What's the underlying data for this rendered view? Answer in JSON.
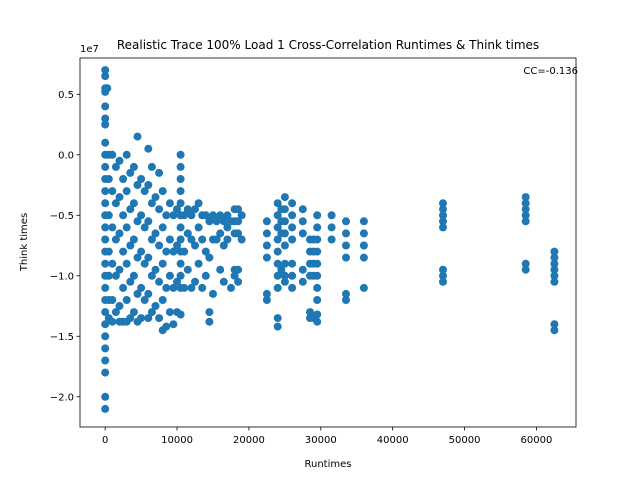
{
  "chart_data": {
    "type": "scatter",
    "title": "Realistic Trace 100% Load 1 Cross-Correlation Runtimes & Think times",
    "xlabel": "Runtimes",
    "ylabel": "Think times",
    "y_offset_label": "1e7",
    "annotation": "CC=-0.136",
    "xlim": [
      -3500,
      65500
    ],
    "ylim": [
      -2.25,
      0.8
    ],
    "x_ticks": [
      0,
      10000,
      20000,
      30000,
      40000,
      50000,
      60000
    ],
    "x_tick_labels": [
      "0",
      "10000",
      "20000",
      "30000",
      "40000",
      "50000",
      "60000"
    ],
    "y_ticks": [
      0.5,
      0.0,
      -0.5,
      -1.0,
      -1.5,
      -2.0
    ],
    "y_tick_labels": [
      "0.5",
      "0.0",
      "−0.5",
      "−1.0",
      "−1.5",
      "−2.0"
    ],
    "marker_color": "#1f77b4",
    "grid": false,
    "points": [
      [
        0,
        0.7
      ],
      [
        0,
        0.65
      ],
      [
        0,
        0.55
      ],
      [
        0,
        0.52
      ],
      [
        0,
        0.4
      ],
      [
        0,
        0.3
      ],
      [
        0,
        0.25
      ],
      [
        0,
        0.1
      ],
      [
        0,
        0.0
      ],
      [
        0,
        -0.1
      ],
      [
        0,
        -0.2
      ],
      [
        0,
        -0.3
      ],
      [
        0,
        -0.4
      ],
      [
        0,
        -0.5
      ],
      [
        0,
        -0.6
      ],
      [
        0,
        -0.7
      ],
      [
        0,
        -0.8
      ],
      [
        0,
        -0.9
      ],
      [
        0,
        -1.0
      ],
      [
        0,
        -1.1
      ],
      [
        0,
        -1.2
      ],
      [
        0,
        -1.3
      ],
      [
        0,
        -1.4
      ],
      [
        0,
        -1.5
      ],
      [
        0,
        -1.6
      ],
      [
        0,
        -1.7
      ],
      [
        0,
        -1.8
      ],
      [
        0,
        -2.0
      ],
      [
        0,
        -2.1
      ],
      [
        300,
        0.55
      ],
      [
        500,
        0.0
      ],
      [
        500,
        -0.2
      ],
      [
        500,
        -0.5
      ],
      [
        500,
        -0.8
      ],
      [
        500,
        -1.0
      ],
      [
        500,
        -1.2
      ],
      [
        500,
        -1.35
      ],
      [
        1000,
        0.0
      ],
      [
        1000,
        -0.3
      ],
      [
        1000,
        -0.6
      ],
      [
        1000,
        -0.9
      ],
      [
        1000,
        -1.2
      ],
      [
        1000,
        -1.38
      ],
      [
        1500,
        -0.1
      ],
      [
        1500,
        -0.4
      ],
      [
        1500,
        -0.7
      ],
      [
        1500,
        -1.0
      ],
      [
        1500,
        -1.3
      ],
      [
        2000,
        -0.05
      ],
      [
        2000,
        -0.35
      ],
      [
        2000,
        -0.65
      ],
      [
        2000,
        -0.95
      ],
      [
        2000,
        -1.25
      ],
      [
        2000,
        -1.38
      ],
      [
        2500,
        -0.2
      ],
      [
        2500,
        -0.5
      ],
      [
        2500,
        -0.8
      ],
      [
        2500,
        -1.1
      ],
      [
        2500,
        -1.38
      ],
      [
        3000,
        0.0
      ],
      [
        3000,
        -0.3
      ],
      [
        3000,
        -0.6
      ],
      [
        3000,
        -0.9
      ],
      [
        3000,
        -1.2
      ],
      [
        3000,
        -1.38
      ],
      [
        3500,
        -0.15
      ],
      [
        3500,
        -0.45
      ],
      [
        3500,
        -0.75
      ],
      [
        3500,
        -1.05
      ],
      [
        3500,
        -1.35
      ],
      [
        4000,
        -0.1
      ],
      [
        4000,
        -0.4
      ],
      [
        4000,
        -0.7
      ],
      [
        4000,
        -1.0
      ],
      [
        4000,
        -1.3
      ],
      [
        4500,
        0.15
      ],
      [
        4500,
        -0.25
      ],
      [
        4500,
        -0.55
      ],
      [
        4500,
        -0.85
      ],
      [
        4500,
        -1.15
      ],
      [
        4500,
        -1.38
      ],
      [
        5000,
        -0.2
      ],
      [
        5000,
        -0.5
      ],
      [
        5000,
        -0.8
      ],
      [
        5000,
        -1.1
      ],
      [
        5000,
        -1.35
      ],
      [
        5500,
        -0.3
      ],
      [
        5500,
        -0.6
      ],
      [
        5500,
        -0.9
      ],
      [
        5500,
        -1.2
      ],
      [
        6000,
        0.05
      ],
      [
        6000,
        -0.25
      ],
      [
        6000,
        -0.55
      ],
      [
        6000,
        -0.85
      ],
      [
        6000,
        -1.15
      ],
      [
        6000,
        -1.35
      ],
      [
        6500,
        -0.1
      ],
      [
        6500,
        -0.4
      ],
      [
        6500,
        -0.7
      ],
      [
        6500,
        -1.0
      ],
      [
        6500,
        -1.3
      ],
      [
        7000,
        -0.35
      ],
      [
        7000,
        -0.65
      ],
      [
        7000,
        -0.95
      ],
      [
        7000,
        -1.25
      ],
      [
        7500,
        -0.15
      ],
      [
        7500,
        -0.45
      ],
      [
        7500,
        -0.75
      ],
      [
        7500,
        -1.05
      ],
      [
        7500,
        -1.35
      ],
      [
        8000,
        -0.3
      ],
      [
        8000,
        -0.6
      ],
      [
        8000,
        -0.9
      ],
      [
        8000,
        -1.2
      ],
      [
        8000,
        -1.45
      ],
      [
        8500,
        -0.5
      ],
      [
        8500,
        -0.8
      ],
      [
        8500,
        -1.1
      ],
      [
        8500,
        -1.42
      ],
      [
        9000,
        -0.4
      ],
      [
        9000,
        -0.7
      ],
      [
        9000,
        -1.0
      ],
      [
        9000,
        -1.3
      ],
      [
        9500,
        -0.5
      ],
      [
        9500,
        -0.8
      ],
      [
        9500,
        -1.1
      ],
      [
        9500,
        -1.4
      ],
      [
        10000,
        -0.45
      ],
      [
        10000,
        -0.75
      ],
      [
        10000,
        -1.05
      ],
      [
        10000,
        -1.3
      ],
      [
        10500,
        0.0
      ],
      [
        10500,
        -0.1
      ],
      [
        10500,
        -0.2
      ],
      [
        10500,
        -0.3
      ],
      [
        10500,
        -0.4
      ],
      [
        10500,
        -0.5
      ],
      [
        10500,
        -0.6
      ],
      [
        10500,
        -0.7
      ],
      [
        10500,
        -0.8
      ],
      [
        10500,
        -0.9
      ],
      [
        10500,
        -1.0
      ],
      [
        10500,
        -1.1
      ],
      [
        10500,
        -1.32
      ],
      [
        11000,
        -0.5
      ],
      [
        11000,
        -0.8
      ],
      [
        11000,
        -1.1
      ],
      [
        11500,
        -0.45
      ],
      [
        11500,
        -0.65
      ],
      [
        11500,
        -0.95
      ],
      [
        12000,
        -0.5
      ],
      [
        12000,
        -0.7
      ],
      [
        12000,
        -1.1
      ],
      [
        12500,
        -0.45
      ],
      [
        12500,
        -0.75
      ],
      [
        12500,
        -1.05
      ],
      [
        13000,
        -0.4
      ],
      [
        13000,
        -0.6
      ],
      [
        13000,
        -0.9
      ],
      [
        13500,
        -0.5
      ],
      [
        13500,
        -0.7
      ],
      [
        13500,
        -1.1
      ],
      [
        14000,
        -0.5
      ],
      [
        14000,
        -0.8
      ],
      [
        14000,
        -1.0
      ],
      [
        14500,
        -0.55
      ],
      [
        14500,
        -0.85
      ],
      [
        14500,
        -1.3
      ],
      [
        14500,
        -1.38
      ],
      [
        15000,
        -0.5
      ],
      [
        15000,
        -0.7
      ],
      [
        15000,
        -1.15
      ],
      [
        15500,
        -0.55
      ],
      [
        15500,
        -0.7
      ],
      [
        16000,
        -0.5
      ],
      [
        16000,
        -0.65
      ],
      [
        16000,
        -0.95
      ],
      [
        16500,
        -0.55
      ],
      [
        16500,
        -0.75
      ],
      [
        16500,
        -1.05
      ],
      [
        17000,
        -0.5
      ],
      [
        17000,
        -0.6
      ],
      [
        17000,
        -0.7
      ],
      [
        17500,
        -0.55
      ],
      [
        17500,
        -1.1
      ],
      [
        18000,
        -0.45
      ],
      [
        18000,
        -0.55
      ],
      [
        18000,
        -0.65
      ],
      [
        18000,
        -0.95
      ],
      [
        18000,
        -1.0
      ],
      [
        18500,
        -0.45
      ],
      [
        18500,
        -0.55
      ],
      [
        18500,
        -0.65
      ],
      [
        18500,
        -0.95
      ],
      [
        18500,
        -1.05
      ],
      [
        19000,
        -0.5
      ],
      [
        19000,
        -0.7
      ],
      [
        22500,
        -0.55
      ],
      [
        22500,
        -0.65
      ],
      [
        22500,
        -0.75
      ],
      [
        22500,
        -0.85
      ],
      [
        22500,
        -1.15
      ],
      [
        22500,
        -1.2
      ],
      [
        24000,
        -0.4
      ],
      [
        24000,
        -0.5
      ],
      [
        24000,
        -0.6
      ],
      [
        24000,
        -0.7
      ],
      [
        24000,
        -0.8
      ],
      [
        24000,
        -0.9
      ],
      [
        24000,
        -1.0
      ],
      [
        24000,
        -1.1
      ],
      [
        24000,
        -1.35
      ],
      [
        24000,
        -1.42
      ],
      [
        24500,
        -0.45
      ],
      [
        24500,
        -0.55
      ],
      [
        24500,
        -0.65
      ],
      [
        24500,
        -0.95
      ],
      [
        25000,
        -0.35
      ],
      [
        25000,
        -0.45
      ],
      [
        25000,
        -0.55
      ],
      [
        25000,
        -0.65
      ],
      [
        25000,
        -0.75
      ],
      [
        25000,
        -0.9
      ],
      [
        25000,
        -1.0
      ],
      [
        25000,
        -1.05
      ],
      [
        26000,
        -0.4
      ],
      [
        26000,
        -0.5
      ],
      [
        26000,
        -0.6
      ],
      [
        26000,
        -0.7
      ],
      [
        26000,
        -0.9
      ],
      [
        26000,
        -1.0
      ],
      [
        26000,
        -1.1
      ],
      [
        27500,
        -0.45
      ],
      [
        27500,
        -0.55
      ],
      [
        27500,
        -0.65
      ],
      [
        27500,
        -0.95
      ],
      [
        27500,
        -1.05
      ],
      [
        28500,
        -0.7
      ],
      [
        28500,
        -0.8
      ],
      [
        28500,
        -0.9
      ],
      [
        28500,
        -1.0
      ],
      [
        28500,
        -1.3
      ],
      [
        28500,
        -1.35
      ],
      [
        29000,
        -0.7
      ],
      [
        29000,
        -0.8
      ],
      [
        29000,
        -0.9
      ],
      [
        29000,
        -1.0
      ],
      [
        29000,
        -1.35
      ],
      [
        29500,
        -0.5
      ],
      [
        29500,
        -0.6
      ],
      [
        29500,
        -0.7
      ],
      [
        29500,
        -0.8
      ],
      [
        29500,
        -0.9
      ],
      [
        29500,
        -1.0
      ],
      [
        29500,
        -1.1
      ],
      [
        29500,
        -1.2
      ],
      [
        29500,
        -1.32
      ],
      [
        29500,
        -1.38
      ],
      [
        31500,
        -0.5
      ],
      [
        31500,
        -0.6
      ],
      [
        31500,
        -0.7
      ],
      [
        33500,
        -0.55
      ],
      [
        33500,
        -0.65
      ],
      [
        33500,
        -0.75
      ],
      [
        33500,
        -0.85
      ],
      [
        33500,
        -1.15
      ],
      [
        33500,
        -1.2
      ],
      [
        36000,
        -0.55
      ],
      [
        36000,
        -0.65
      ],
      [
        36000,
        -0.75
      ],
      [
        36000,
        -0.85
      ],
      [
        36000,
        -1.1
      ],
      [
        47000,
        -0.4
      ],
      [
        47000,
        -0.45
      ],
      [
        47000,
        -0.5
      ],
      [
        47000,
        -0.55
      ],
      [
        47000,
        -0.6
      ],
      [
        47000,
        -0.95
      ],
      [
        47000,
        -1.0
      ],
      [
        47000,
        -1.05
      ],
      [
        58500,
        -0.35
      ],
      [
        58500,
        -0.4
      ],
      [
        58500,
        -0.45
      ],
      [
        58500,
        -0.5
      ],
      [
        58500,
        -0.55
      ],
      [
        58500,
        -0.9
      ],
      [
        58500,
        -0.95
      ],
      [
        62500,
        -0.8
      ],
      [
        62500,
        -0.85
      ],
      [
        62500,
        -0.9
      ],
      [
        62500,
        -0.95
      ],
      [
        62500,
        -1.0
      ],
      [
        62500,
        -1.05
      ],
      [
        62500,
        -1.4
      ],
      [
        62500,
        -1.45
      ]
    ]
  }
}
